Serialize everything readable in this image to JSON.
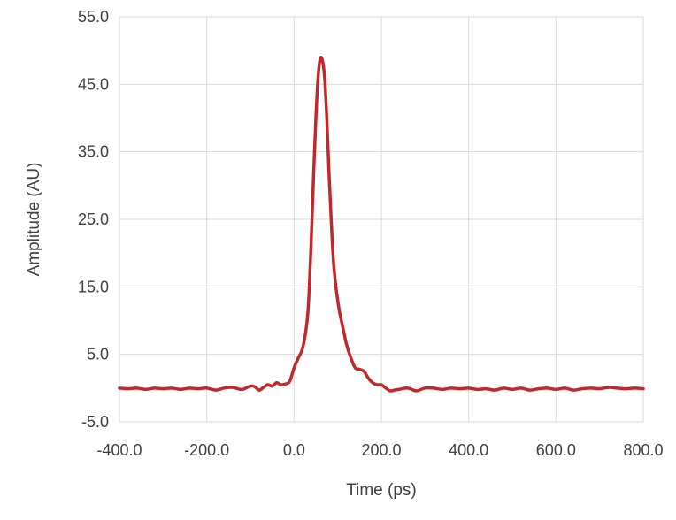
{
  "chart_data": {
    "type": "line",
    "xlabel": "Time (ps)",
    "ylabel": "Amplitude (AU)",
    "xlim": [
      -400,
      800
    ],
    "ylim": [
      -5,
      55
    ],
    "x_ticks": [
      "-400.0",
      "-200.0",
      "0.0",
      "200.0",
      "400.0",
      "600.0",
      "800.0"
    ],
    "y_ticks": [
      "55.0",
      "45.0",
      "35.0",
      "25.0",
      "15.0",
      "5.0",
      "-5.0"
    ],
    "grid": true,
    "legend": "none",
    "color": "#c0282d",
    "series": [
      {
        "x": [
          -400,
          -380,
          -360,
          -340,
          -320,
          -300,
          -280,
          -260,
          -240,
          -220,
          -200,
          -180,
          -160,
          -140,
          -120,
          -100,
          -90,
          -80,
          -70,
          -60,
          -50,
          -40,
          -30,
          -20,
          -10,
          0,
          10,
          20,
          30,
          35,
          40,
          45,
          50,
          55,
          60,
          65,
          70,
          75,
          80,
          85,
          90,
          95,
          100,
          105,
          110,
          115,
          120,
          130,
          140,
          150,
          160,
          170,
          180,
          190,
          200,
          210,
          220,
          230,
          240,
          260,
          280,
          300,
          320,
          340,
          360,
          380,
          400,
          420,
          440,
          460,
          480,
          500,
          520,
          540,
          560,
          580,
          600,
          620,
          640,
          660,
          680,
          700,
          720,
          740,
          760,
          780,
          800
        ],
        "y": [
          0,
          -0.1,
          0,
          -0.2,
          0,
          -0.1,
          0,
          -0.2,
          0,
          -0.1,
          0,
          -0.3,
          0,
          0.1,
          -0.2,
          0.3,
          0.2,
          -0.3,
          0.1,
          0.5,
          0.3,
          0.8,
          0.5,
          0.6,
          1.0,
          3.0,
          4.5,
          6.0,
          10.0,
          15.0,
          23.0,
          32.0,
          40.0,
          46.0,
          48.8,
          48.5,
          46.0,
          40.0,
          32.0,
          25.0,
          19.0,
          15.5,
          13.0,
          11.0,
          9.5,
          8.0,
          6.5,
          4.5,
          3.0,
          2.8,
          2.5,
          1.5,
          0.8,
          0.5,
          0.5,
          0,
          -0.4,
          -0.3,
          -0.2,
          0,
          -0.4,
          0,
          0,
          -0.2,
          0,
          -0.1,
          0,
          -0.2,
          -0.1,
          -0.3,
          0,
          -0.2,
          0,
          -0.3,
          -0.1,
          0,
          -0.2,
          0,
          -0.3,
          -0.1,
          0,
          -0.1,
          0.1,
          0,
          -0.1,
          0,
          -0.1
        ]
      }
    ]
  }
}
